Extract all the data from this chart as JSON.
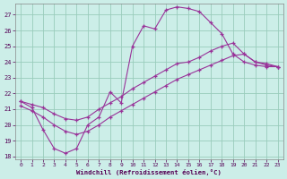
{
  "xlabel": "Windchill (Refroidissement éolien,°C)",
  "bg_color": "#cceee8",
  "line_color": "#993399",
  "grid_color": "#99ccbb",
  "xlim_min": -0.5,
  "xlim_max": 23.5,
  "ylim_min": 17.8,
  "ylim_max": 27.7,
  "yticks": [
    18,
    19,
    20,
    21,
    22,
    23,
    24,
    25,
    26,
    27
  ],
  "xticks": [
    0,
    1,
    2,
    3,
    4,
    5,
    6,
    7,
    8,
    9,
    10,
    11,
    12,
    13,
    14,
    15,
    16,
    17,
    18,
    19,
    20,
    21,
    22,
    23
  ],
  "series1_x": [
    0,
    1,
    2,
    3,
    4,
    5,
    6,
    7,
    8,
    9,
    10,
    11,
    12,
    13,
    14,
    15,
    16,
    17,
    18,
    19,
    20,
    21,
    22,
    23
  ],
  "series1_y": [
    21.5,
    21.1,
    19.7,
    18.5,
    18.2,
    18.5,
    20.0,
    20.5,
    22.1,
    21.4,
    25.0,
    26.3,
    26.1,
    27.3,
    27.5,
    27.4,
    27.2,
    26.5,
    25.8,
    24.5,
    24.0,
    23.8,
    23.7,
    23.7
  ],
  "series2_x": [
    0,
    1,
    2,
    3,
    4,
    5,
    6,
    7,
    8,
    9,
    10,
    11,
    12,
    13,
    14,
    15,
    16,
    17,
    18,
    19,
    20,
    21,
    22,
    23
  ],
  "series2_y": [
    21.5,
    21.3,
    21.1,
    20.7,
    20.4,
    20.3,
    20.5,
    21.0,
    21.4,
    21.8,
    22.3,
    22.7,
    23.1,
    23.5,
    23.9,
    24.0,
    24.3,
    24.7,
    25.0,
    25.2,
    24.5,
    24.0,
    23.9,
    23.7
  ],
  "series3_x": [
    0,
    1,
    2,
    3,
    4,
    5,
    6,
    7,
    8,
    9,
    10,
    11,
    12,
    13,
    14,
    15,
    16,
    17,
    18,
    19,
    20,
    21,
    22,
    23
  ],
  "series3_y": [
    21.2,
    20.9,
    20.5,
    20.0,
    19.6,
    19.4,
    19.6,
    20.0,
    20.5,
    20.9,
    21.3,
    21.7,
    22.1,
    22.5,
    22.9,
    23.2,
    23.5,
    23.8,
    24.1,
    24.4,
    24.5,
    24.0,
    23.8,
    23.7
  ]
}
